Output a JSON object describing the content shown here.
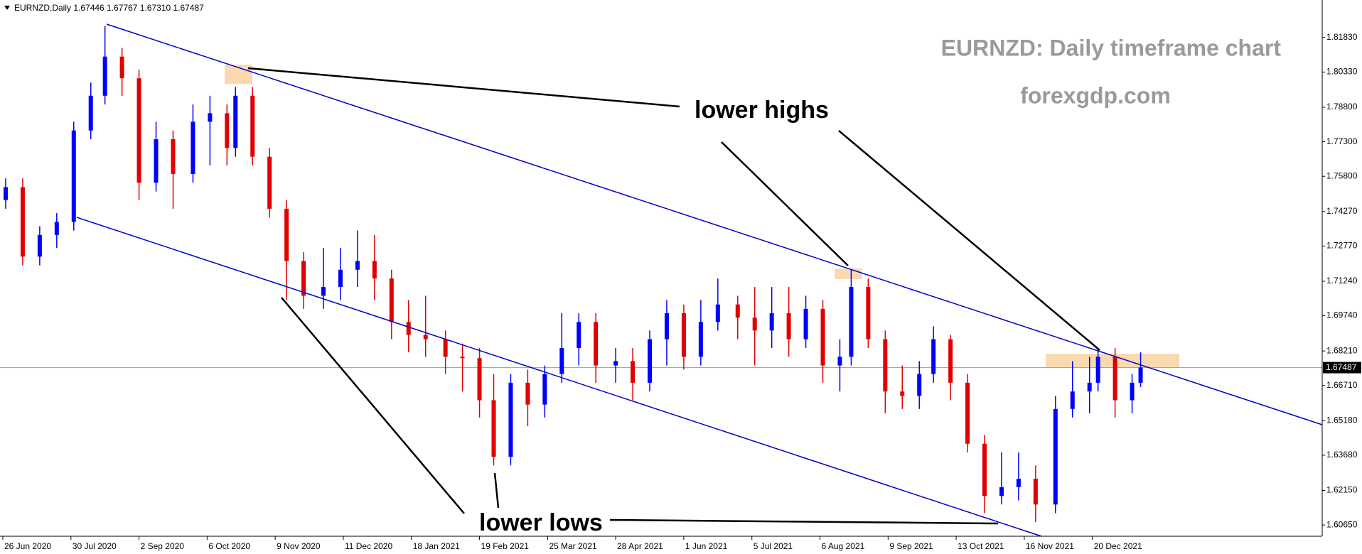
{
  "chart_data": {
    "type": "candlestick",
    "title": "EURNZD,Daily  1.67446 1.67767 1.67310 1.67487",
    "annotations": [
      "EURNZD: Daily timeframe chart",
      "forexgdp.com",
      "lower highs",
      "lower lows"
    ],
    "up_color": "#0000ff",
    "down_color": "#e00000",
    "xlim": [
      0,
      466
    ],
    "xticks": [
      {
        "value": 1,
        "label": "26 Jun 2020"
      },
      {
        "value": 25,
        "label": "30 Jul 2020"
      },
      {
        "value": 49,
        "label": "2 Sep 2020"
      },
      {
        "value": 73,
        "label": "6 Oct 2020"
      },
      {
        "value": 97,
        "label": "9 Nov 2020"
      },
      {
        "value": 121,
        "label": "11 Dec 2020"
      },
      {
        "value": 145,
        "label": "18 Jan 2021"
      },
      {
        "value": 169,
        "label": "19 Feb 2021"
      },
      {
        "value": 193,
        "label": "25 Mar 2021"
      },
      {
        "value": 217,
        "label": "28 Apr 2021"
      },
      {
        "value": 241,
        "label": "1 Jun 2021"
      },
      {
        "value": 265,
        "label": "5 Jul 2021"
      },
      {
        "value": 289,
        "label": "6 Aug 2021"
      },
      {
        "value": 313,
        "label": "9 Sep 2021"
      },
      {
        "value": 337,
        "label": "13 Oct 2021"
      },
      {
        "value": 361,
        "label": "16 Nov 2021"
      },
      {
        "value": 385,
        "label": "20 Dec 2021"
      }
    ],
    "ylim": [
      1.6016,
      1.8346
    ],
    "yticks": [
      {
        "value": 1.8183,
        "label": "1.81830"
      },
      {
        "value": 1.8033,
        "label": "1.80330"
      },
      {
        "value": 1.788,
        "label": "1.78800"
      },
      {
        "value": 1.773,
        "label": "1.77300"
      },
      {
        "value": 1.758,
        "label": "1.75800"
      },
      {
        "value": 1.7427,
        "label": "1.74270"
      },
      {
        "value": 1.7277,
        "label": "1.72770"
      },
      {
        "value": 1.7124,
        "label": "1.71240"
      },
      {
        "value": 1.6974,
        "label": "1.69740"
      },
      {
        "value": 1.6821,
        "label": "1.68210"
      },
      {
        "value": 1.6671,
        "label": "1.66710"
      },
      {
        "value": 1.6518,
        "label": "1.65180"
      },
      {
        "value": 1.6368,
        "label": "1.63680"
      },
      {
        "value": 1.6215,
        "label": "1.62150"
      },
      {
        "value": 1.6065,
        "label": "1.60650"
      }
    ],
    "current_price": 1.67487,
    "x": [
      2,
      8,
      14,
      20,
      26,
      32,
      37,
      43,
      49,
      55,
      61,
      68,
      74,
      80,
      83,
      89,
      95,
      101,
      107,
      114,
      120,
      126,
      132,
      138,
      144,
      150,
      157,
      163,
      169,
      174,
      180,
      186,
      192,
      198,
      204,
      210,
      217,
      223,
      229,
      235,
      241,
      247,
      253,
      260,
      266,
      272,
      278,
      284,
      290,
      296,
      300,
      306,
      312,
      318,
      324,
      329,
      335,
      341,
      347,
      353,
      359,
      365,
      372,
      378,
      384,
      387,
      393,
      399,
      402
    ],
    "open": [
      1.7477,
      1.7533,
      1.7231,
      1.7325,
      1.7382,
      1.7779,
      1.793,
      1.81,
      1.8006,
      1.7552,
      1.7741,
      1.759,
      1.7817,
      1.7854,
      1.7703,
      1.793,
      1.7665,
      1.7439,
      1.7212,
      1.7061,
      1.7099,
      1.7174,
      1.7212,
      1.7136,
      1.6947,
      1.6891,
      1.6872,
      1.6796,
      1.679,
      1.6607,
      1.6361,
      1.6683,
      1.6588,
      1.6721,
      1.6834,
      1.6947,
      1.6758,
      1.6777,
      1.6683,
      1.6872,
      1.6985,
      1.6796,
      1.6947,
      1.7023,
      1.6966,
      1.691,
      1.6985,
      1.6872,
      1.7004,
      1.6758,
      1.6796,
      1.7099,
      1.6872,
      1.6645,
      1.6626,
      1.6721,
      1.6872,
      1.6683,
      1.6418,
      1.6191,
      1.6229,
      1.6266,
      1.6154,
      1.6569,
      1.6645,
      1.6683,
      1.6796,
      1.6607,
      1.6683
    ],
    "high": [
      1.7571,
      1.7571,
      1.7363,
      1.742,
      1.7817,
      1.7987,
      1.8233,
      1.8138,
      1.8044,
      1.7817,
      1.7779,
      1.7892,
      1.793,
      1.7892,
      1.7968,
      1.7968,
      1.7703,
      1.7477,
      1.725,
      1.7269,
      1.7269,
      1.7344,
      1.7325,
      1.7174,
      1.7042,
      1.7061,
      1.691,
      1.6853,
      1.6834,
      1.6721,
      1.6721,
      1.674,
      1.6758,
      1.6985,
      1.6985,
      1.6985,
      1.6834,
      1.6834,
      1.691,
      1.7042,
      1.7023,
      1.7042,
      1.7136,
      1.7061,
      1.7099,
      1.7099,
      1.7099,
      1.7061,
      1.7042,
      1.6872,
      1.7174,
      1.7136,
      1.691,
      1.6758,
      1.6777,
      1.6928,
      1.6891,
      1.6721,
      1.6456,
      1.638,
      1.638,
      1.6324,
      1.6626,
      1.6777,
      1.6796,
      1.6834,
      1.6834,
      1.6721,
      1.6815
    ],
    "low": [
      1.7439,
      1.7193,
      1.7193,
      1.7269,
      1.7344,
      1.7741,
      1.7892,
      1.793,
      1.7477,
      1.7514,
      1.7439,
      1.7552,
      1.7627,
      1.7627,
      1.7665,
      1.7627,
      1.7401,
      1.7042,
      1.7004,
      1.7004,
      1.7042,
      1.7099,
      1.7042,
      1.6872,
      1.6815,
      1.6796,
      1.6721,
      1.6645,
      1.6532,
      1.6324,
      1.6324,
      1.6494,
      1.6532,
      1.6683,
      1.6758,
      1.6683,
      1.6683,
      1.6607,
      1.6645,
      1.6758,
      1.674,
      1.6758,
      1.691,
      1.6872,
      1.6758,
      1.6834,
      1.6796,
      1.6834,
      1.6683,
      1.6645,
      1.6758,
      1.6834,
      1.655,
      1.6569,
      1.6569,
      1.6683,
      1.6607,
      1.638,
      1.6116,
      1.6154,
      1.6172,
      1.6078,
      1.6116,
      1.6532,
      1.655,
      1.6645,
      1.6532,
      1.655,
      1.6664
    ],
    "close": [
      1.7533,
      1.7231,
      1.7325,
      1.7382,
      1.7779,
      1.793,
      1.81,
      1.8006,
      1.7552,
      1.7741,
      1.759,
      1.7817,
      1.7854,
      1.7703,
      1.793,
      1.7665,
      1.7439,
      1.7212,
      1.7061,
      1.7099,
      1.7174,
      1.7212,
      1.7136,
      1.6947,
      1.6891,
      1.6872,
      1.6796,
      1.679,
      1.6607,
      1.6361,
      1.6683,
      1.6588,
      1.6721,
      1.6834,
      1.6947,
      1.6758,
      1.6777,
      1.6683,
      1.6872,
      1.6985,
      1.6796,
      1.6947,
      1.7023,
      1.6966,
      1.691,
      1.6985,
      1.6872,
      1.7004,
      1.6758,
      1.6796,
      1.7099,
      1.6872,
      1.6645,
      1.6626,
      1.6721,
      1.6872,
      1.6683,
      1.6418,
      1.6191,
      1.6229,
      1.6266,
      1.6154,
      1.6569,
      1.6645,
      1.6683,
      1.6796,
      1.6607,
      1.6683,
      1.6749
    ]
  }
}
